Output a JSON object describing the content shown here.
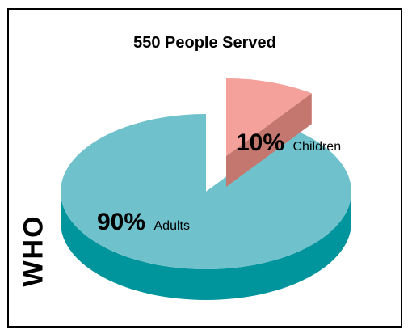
{
  "chart_data": {
    "type": "pie",
    "title": "550 People Served",
    "side_label": "WHO",
    "slices": [
      {
        "name": "Children",
        "percent": 10,
        "label": "10%",
        "top_color": "#f4a09b",
        "side_color": "#c4776e"
      },
      {
        "name": "Adults",
        "percent": 90,
        "label": "90%",
        "top_color": "#6fc1cc",
        "side_color": "#00949c"
      }
    ],
    "exploded_slice": "Children"
  }
}
